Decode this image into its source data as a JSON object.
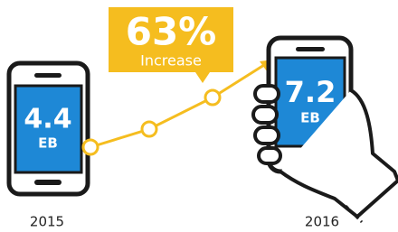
{
  "callout": {
    "value": "63%",
    "label": "Increase"
  },
  "phones": [
    {
      "value": "4.4",
      "unit": "EB",
      "year": "2015"
    },
    {
      "value": "7.2",
      "unit": "EB",
      "year": "2016"
    }
  ]
}
